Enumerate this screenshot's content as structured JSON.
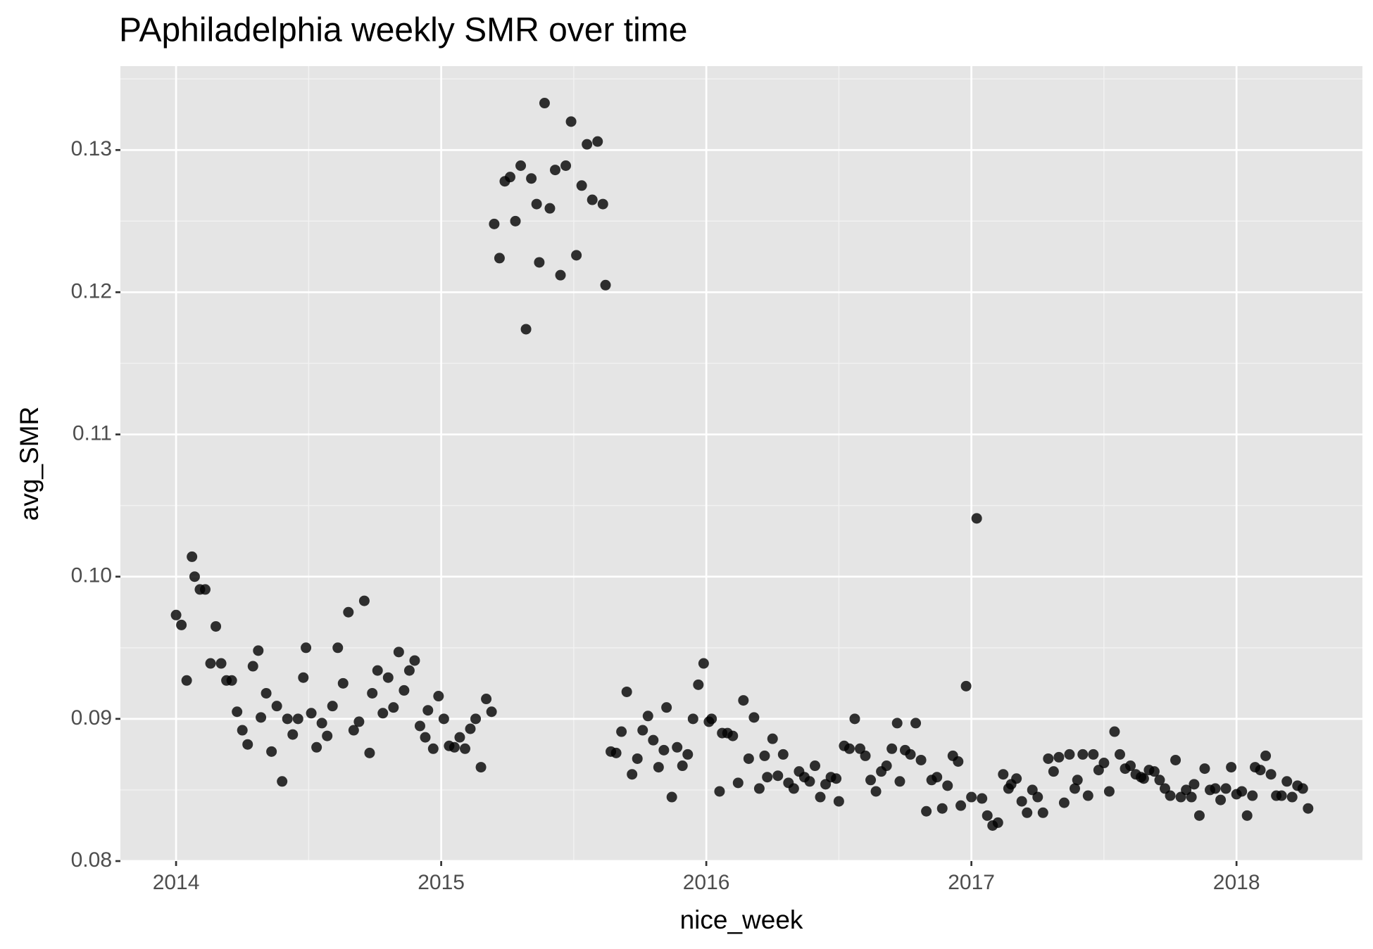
{
  "chart_data": {
    "type": "scatter",
    "title": "PAphiladelphia weekly SMR over time",
    "x_label": "nice_week",
    "y_label": "avg_SMR",
    "color": "#000000",
    "point_opacity": 0.8,
    "grid": true,
    "xlim": [
      2013.79,
      2018.475
    ],
    "xticks": [
      2014,
      2015,
      2016,
      2017,
      2018
    ],
    "ylim": [
      0.08,
      0.1359
    ],
    "yticks": [
      0.08,
      0.09,
      {
        "value": 0.1,
        "label": "0.10"
      },
      0.11,
      0.12,
      0.13
    ],
    "x": [
      2014.0,
      2014.02,
      2014.04,
      2014.06,
      2014.07,
      2014.09,
      2014.11,
      2014.13,
      2014.15,
      2014.17,
      2014.19,
      2014.21,
      2014.23,
      2014.25,
      2014.27,
      2014.29,
      2014.31,
      2014.32,
      2014.34,
      2014.36,
      2014.38,
      2014.4,
      2014.42,
      2014.44,
      2014.46,
      2014.48,
      2014.49,
      2014.51,
      2014.53,
      2014.55,
      2014.57,
      2014.59,
      2014.61,
      2014.63,
      2014.65,
      2014.67,
      2014.69,
      2014.71,
      2014.73,
      2014.74,
      2014.76,
      2014.78,
      2014.8,
      2014.82,
      2014.84,
      2014.86,
      2014.88,
      2014.9,
      2014.92,
      2014.94,
      2014.95,
      2014.97,
      2014.99,
      2015.01,
      2015.03,
      2015.05,
      2015.07,
      2015.09,
      2015.11,
      2015.13,
      2015.15,
      2015.17,
      2015.19,
      2015.2,
      2015.22,
      2015.24,
      2015.26,
      2015.28,
      2015.3,
      2015.32,
      2015.34,
      2015.36,
      2015.37,
      2015.39,
      2015.41,
      2015.43,
      2015.45,
      2015.47,
      2015.49,
      2015.51,
      2015.53,
      2015.55,
      2015.57,
      2015.59,
      2015.61,
      2015.62,
      2015.64,
      2015.66,
      2015.68,
      2015.7,
      2015.72,
      2015.74,
      2015.76,
      2015.78,
      2015.8,
      2015.82,
      2015.84,
      2015.85,
      2015.87,
      2015.89,
      2015.91,
      2015.93,
      2015.95,
      2015.97,
      2015.99,
      2016.01,
      2016.02,
      2016.05,
      2016.06,
      2016.08,
      2016.1,
      2016.12,
      2016.14,
      2016.16,
      2016.18,
      2016.2,
      2016.22,
      2016.23,
      2016.25,
      2016.27,
      2016.29,
      2016.31,
      2016.33,
      2016.35,
      2016.37,
      2016.39,
      2016.41,
      2016.43,
      2016.45,
      2016.47,
      2016.49,
      2016.5,
      2016.52,
      2016.54,
      2016.56,
      2016.58,
      2016.6,
      2016.62,
      2016.64,
      2016.66,
      2016.68,
      2016.7,
      2016.72,
      2016.73,
      2016.75,
      2016.77,
      2016.79,
      2016.81,
      2016.83,
      2016.85,
      2016.87,
      2016.89,
      2016.91,
      2016.93,
      2016.95,
      2016.96,
      2016.98,
      2017.0,
      2017.02,
      2017.04,
      2017.06,
      2017.08,
      2017.1,
      2017.12,
      2017.14,
      2017.15,
      2017.17,
      2017.19,
      2017.21,
      2017.23,
      2017.25,
      2017.27,
      2017.29,
      2017.31,
      2017.33,
      2017.35,
      2017.37,
      2017.39,
      2017.4,
      2017.42,
      2017.44,
      2017.46,
      2017.48,
      2017.5,
      2017.52,
      2017.54,
      2017.56,
      2017.58,
      2017.6,
      2017.62,
      2017.64,
      2017.65,
      2017.67,
      2017.69,
      2017.71,
      2017.73,
      2017.75,
      2017.77,
      2017.79,
      2017.81,
      2017.83,
      2017.84,
      2017.86,
      2017.88,
      2017.9,
      2017.92,
      2017.94,
      2017.96,
      2017.98,
      2018.0,
      2018.02,
      2018.04,
      2018.06,
      2018.07,
      2018.09,
      2018.11,
      2018.13,
      2018.15,
      2018.17,
      2018.19,
      2018.21,
      2018.23,
      2018.25,
      2018.27
    ],
    "values": [
      0.0973,
      0.0966,
      0.0927,
      0.1014,
      0.1,
      0.0991,
      0.0991,
      0.0939,
      0.0965,
      0.0939,
      0.0927,
      0.0927,
      0.0905,
      0.0892,
      0.0882,
      0.0937,
      0.0948,
      0.0901,
      0.0918,
      0.0877,
      0.0909,
      0.0856,
      0.09,
      0.0889,
      0.09,
      0.0929,
      0.095,
      0.0904,
      0.088,
      0.0897,
      0.0888,
      0.0909,
      0.095,
      0.0925,
      0.0975,
      0.0892,
      0.0898,
      0.0983,
      0.0876,
      0.0918,
      0.0934,
      0.0904,
      0.0929,
      0.0908,
      0.0947,
      0.092,
      0.0934,
      0.0941,
      0.0895,
      0.0887,
      0.0906,
      0.0879,
      0.0916,
      0.09,
      0.0881,
      0.088,
      0.0887,
      0.0879,
      0.0893,
      0.09,
      0.0866,
      0.0914,
      0.0905,
      0.1248,
      0.1224,
      0.1278,
      0.1281,
      0.125,
      0.1289,
      0.1174,
      0.128,
      0.1262,
      0.1221,
      0.1333,
      0.1259,
      0.1286,
      0.1212,
      0.1289,
      0.132,
      0.1226,
      0.1275,
      0.1304,
      0.1265,
      0.1306,
      0.1262,
      0.1205,
      0.0877,
      0.0876,
      0.0891,
      0.0919,
      0.0861,
      0.0872,
      0.0892,
      0.0902,
      0.0885,
      0.0866,
      0.0878,
      0.0908,
      0.0845,
      0.088,
      0.0867,
      0.0875,
      0.09,
      0.0924,
      0.0939,
      0.0898,
      0.09,
      0.0849,
      0.089,
      0.089,
      0.0888,
      0.0855,
      0.0913,
      0.0872,
      0.0901,
      0.0851,
      0.0874,
      0.0859,
      0.0886,
      0.086,
      0.0875,
      0.0855,
      0.0851,
      0.0863,
      0.0859,
      0.0856,
      0.0867,
      0.0845,
      0.0854,
      0.0859,
      0.0858,
      0.0842,
      0.0881,
      0.0879,
      0.09,
      0.0879,
      0.0874,
      0.0857,
      0.0849,
      0.0863,
      0.0867,
      0.0879,
      0.0897,
      0.0856,
      0.0878,
      0.0875,
      0.0897,
      0.0871,
      0.0835,
      0.0857,
      0.0859,
      0.0837,
      0.0853,
      0.0874,
      0.087,
      0.0839,
      0.0923,
      0.0845,
      0.1041,
      0.0844,
      0.0832,
      0.0825,
      0.0827,
      0.0861,
      0.0851,
      0.0854,
      0.0858,
      0.0842,
      0.0834,
      0.085,
      0.0845,
      0.0834,
      0.0872,
      0.0863,
      0.0873,
      0.0841,
      0.0875,
      0.0851,
      0.0857,
      0.0875,
      0.0846,
      0.0875,
      0.0864,
      0.0869,
      0.0849,
      0.0891,
      0.0875,
      0.0865,
      0.0867,
      0.0861,
      0.0859,
      0.0858,
      0.0864,
      0.0863,
      0.0857,
      0.0851,
      0.0846,
      0.0871,
      0.0845,
      0.085,
      0.0845,
      0.0854,
      0.0832,
      0.0865,
      0.085,
      0.0851,
      0.0843,
      0.0851,
      0.0866,
      0.0847,
      0.0849,
      0.0832,
      0.0846,
      0.0866,
      0.0864,
      0.0874,
      0.0861,
      0.0846,
      0.0846,
      0.0856,
      0.0845,
      0.0853,
      0.0851,
      0.0837
    ]
  }
}
